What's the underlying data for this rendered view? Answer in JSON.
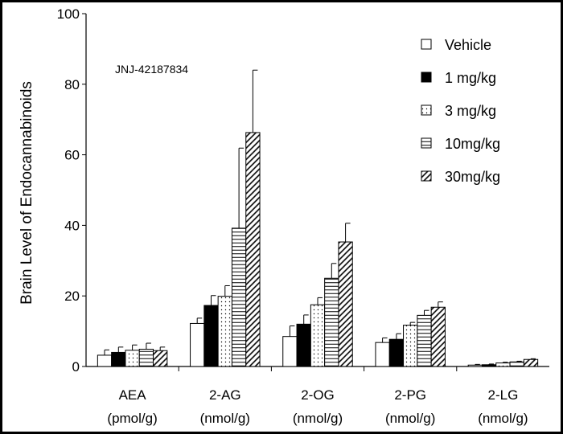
{
  "chart_data": {
    "type": "bar",
    "title": "",
    "annotation": "JNJ-42187834",
    "ylabel": "Brain Level  of Endocannabinoids",
    "xlabel": "",
    "ylim": [
      0,
      100
    ],
    "yticks": [
      0,
      20,
      40,
      60,
      80,
      100
    ],
    "grid": false,
    "legend_position": "top-right",
    "categories": [
      "AEA",
      "2-AG",
      "2-OG",
      "2-PG",
      "2-LG"
    ],
    "category_units": [
      "(pmol/g)",
      "(nmol/g)",
      "(nmol/g)",
      "(nmol/g)",
      "(nmol/g)"
    ],
    "series": [
      {
        "name": "Vehicle",
        "pattern": "white",
        "values": [
          3.2,
          12.2,
          8.5,
          6.8,
          0.4
        ],
        "errors": [
          1.5,
          1.5,
          3.0,
          1.3,
          0.2
        ]
      },
      {
        "name": "1 mg/kg",
        "pattern": "black",
        "values": [
          4.0,
          17.3,
          12.0,
          7.7,
          0.5
        ],
        "errors": [
          1.5,
          2.8,
          2.6,
          1.6,
          0.2
        ]
      },
      {
        "name": "3 mg/kg",
        "pattern": "dots",
        "values": [
          4.6,
          19.9,
          17.5,
          11.7,
          1.0
        ],
        "errors": [
          1.5,
          3.0,
          2.0,
          0.8,
          0.2
        ]
      },
      {
        "name": "10mg/kg",
        "pattern": "hlines",
        "values": [
          4.9,
          39.2,
          25.0,
          14.5,
          1.3
        ],
        "errors": [
          1.7,
          22.7,
          4.2,
          1.4,
          0.2
        ]
      },
      {
        "name": "30mg/kg",
        "pattern": "diag",
        "values": [
          4.5,
          66.3,
          35.3,
          16.8,
          2.0
        ],
        "errors": [
          1.0,
          17.7,
          5.3,
          1.5,
          0.2
        ]
      }
    ]
  }
}
